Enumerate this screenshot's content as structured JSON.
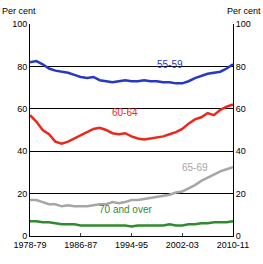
{
  "chart_data": {
    "type": "line",
    "ylabel": "Per cent",
    "y2label": "Per cent",
    "categories": [
      "1978-79",
      null,
      null,
      null,
      null,
      null,
      null,
      null,
      "1986-87",
      null,
      null,
      null,
      null,
      null,
      null,
      null,
      "1994-95",
      null,
      null,
      null,
      null,
      null,
      null,
      null,
      "2002-03",
      null,
      null,
      null,
      null,
      null,
      null,
      null,
      "2010-11"
    ],
    "series": [
      {
        "name": "55-59",
        "color": "#2638c4",
        "values": [
          82,
          82.5,
          81,
          79,
          78,
          77.5,
          77,
          76,
          75,
          74.5,
          75,
          73.5,
          73,
          72.5,
          73,
          73.5,
          73,
          73,
          73.5,
          73,
          73,
          72.5,
          72.5,
          72,
          72,
          73,
          74.5,
          75.5,
          76.5,
          77,
          77.5,
          79,
          81
        ]
      },
      {
        "name": "60-64",
        "color": "#e8291c",
        "values": [
          57,
          54,
          50,
          48,
          44.5,
          43.5,
          44.5,
          46,
          47.5,
          49,
          50.5,
          51,
          50,
          48.5,
          48,
          48.5,
          47,
          46,
          45.5,
          46,
          46.5,
          47,
          48,
          49,
          50.5,
          53,
          55,
          56,
          58,
          57,
          59.5,
          61,
          62
        ]
      },
      {
        "name": "65-69",
        "color": "#a6a6a6",
        "values": [
          17,
          17,
          16,
          15,
          15,
          14,
          14.5,
          14,
          14,
          14,
          14.5,
          15,
          15,
          16,
          15.5,
          16,
          17,
          17,
          17.5,
          18,
          18.5,
          19,
          19.5,
          20.5,
          21,
          22.5,
          24,
          26,
          27.5,
          29,
          30.5,
          31.5,
          32.5
        ]
      },
      {
        "name": "70 and over",
        "color": "#2e8b2e",
        "values": [
          7,
          7,
          6.5,
          6.5,
          6,
          5.5,
          5.5,
          5.5,
          5,
          5,
          5,
          5,
          5,
          5,
          5,
          5,
          4.5,
          5,
          5,
          5,
          5,
          5,
          5.5,
          5,
          5,
          5.5,
          5.5,
          6,
          6,
          6.5,
          6.5,
          6.5,
          7
        ]
      }
    ],
    "ylim": [
      0,
      100
    ],
    "yticks": [
      0,
      20,
      40,
      60,
      80,
      100
    ],
    "y2lim": [
      0,
      100
    ],
    "y2ticks": [
      0,
      20,
      40,
      60,
      80,
      100
    ],
    "grid": true
  }
}
